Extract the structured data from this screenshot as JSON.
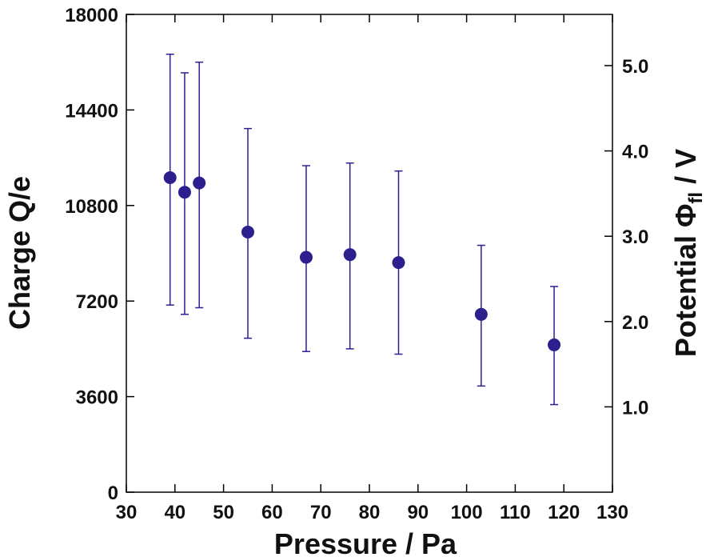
{
  "chart_data": {
    "type": "scatter",
    "xlabel": "Pressure / Pa",
    "ylabel": "Charge Q/e",
    "y2label_main": "Potential ",
    "y2label_symbol": "Φ",
    "y2label_sub": "fl",
    "y2label_tail": " / V",
    "xlim": [
      30,
      130
    ],
    "ylim": [
      0,
      18000
    ],
    "y2lim": [
      0,
      5.6
    ],
    "x_ticks": [
      "30",
      "40",
      "50",
      "60",
      "70",
      "80",
      "90",
      "100",
      "110",
      "120",
      "130"
    ],
    "y_ticks": [
      "0",
      "3600",
      "7200",
      "10800",
      "14400",
      "18000"
    ],
    "y2_ticks": [
      "1.0",
      "2.0",
      "3.0",
      "4.0",
      "5.0"
    ],
    "grid": false,
    "marker_color": "#2e1f8f",
    "points": [
      {
        "x": 39,
        "y": 11850,
        "err_low": 7050,
        "err_high": 16500
      },
      {
        "x": 42,
        "y": 11300,
        "err_low": 6700,
        "err_high": 15800
      },
      {
        "x": 45,
        "y": 11650,
        "err_low": 6950,
        "err_high": 16200
      },
      {
        "x": 55,
        "y": 9800,
        "err_low": 5800,
        "err_high": 13700
      },
      {
        "x": 67,
        "y": 8850,
        "err_low": 5300,
        "err_high": 12300
      },
      {
        "x": 76,
        "y": 8950,
        "err_low": 5400,
        "err_high": 12400
      },
      {
        "x": 86,
        "y": 8650,
        "err_low": 5200,
        "err_high": 12100
      },
      {
        "x": 103,
        "y": 6700,
        "err_low": 4000,
        "err_high": 9300
      },
      {
        "x": 118,
        "y": 5550,
        "err_low": 3300,
        "err_high": 7750
      }
    ]
  }
}
